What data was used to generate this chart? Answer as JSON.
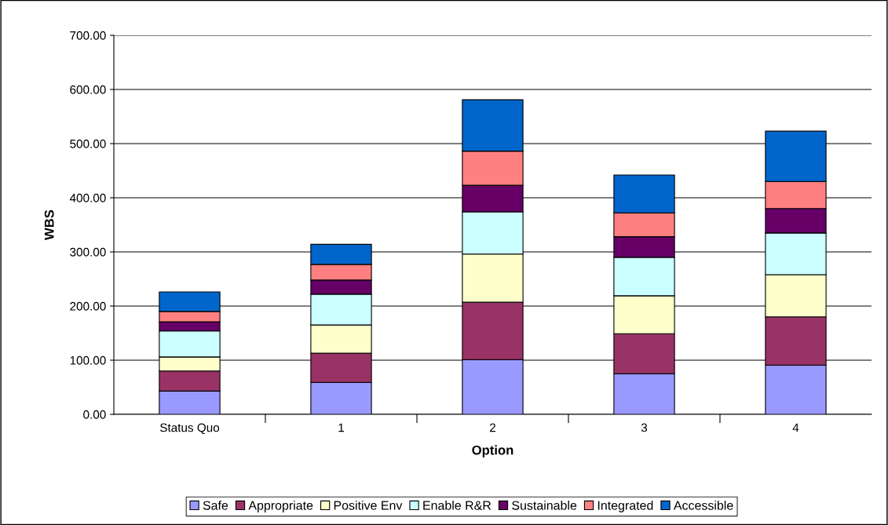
{
  "chart_data": {
    "type": "bar",
    "stacked": true,
    "xlabel": "Option",
    "ylabel": "WBS",
    "categories": [
      "Status Quo",
      "1",
      "2",
      "3",
      "4"
    ],
    "series": [
      {
        "name": "Safe",
        "color": "#9999ff",
        "values": [
          43,
          59,
          101,
          75,
          91
        ]
      },
      {
        "name": "Appropriate",
        "color": "#993366",
        "values": [
          37,
          54,
          106,
          74,
          89
        ]
      },
      {
        "name": "Positive Env",
        "color": "#ffffcc",
        "values": [
          26,
          52,
          89,
          70,
          78
        ]
      },
      {
        "name": "Enable R&R",
        "color": "#ccffff",
        "values": [
          48,
          57,
          78,
          71,
          77
        ]
      },
      {
        "name": "Sustainable",
        "color": "#660066",
        "values": [
          17,
          26,
          49,
          38,
          45
        ]
      },
      {
        "name": "Integrated",
        "color": "#ff8080",
        "values": [
          19,
          29,
          63,
          44,
          50
        ]
      },
      {
        "name": "Accessible",
        "color": "#0066cc",
        "values": [
          36,
          37,
          95,
          70,
          93
        ]
      }
    ],
    "ylim": [
      0,
      700
    ],
    "yticks": [
      {
        "value": 0,
        "label": "0.00"
      },
      {
        "value": 100,
        "label": "100.00"
      },
      {
        "value": 200,
        "label": "200.00"
      },
      {
        "value": 300,
        "label": "300.00"
      },
      {
        "value": 400,
        "label": "400.00"
      },
      {
        "value": 500,
        "label": "500.00"
      },
      {
        "value": 600,
        "label": "600.00"
      },
      {
        "value": 700,
        "label": "700.00"
      }
    ],
    "grid": "y",
    "legend": "bottom"
  }
}
